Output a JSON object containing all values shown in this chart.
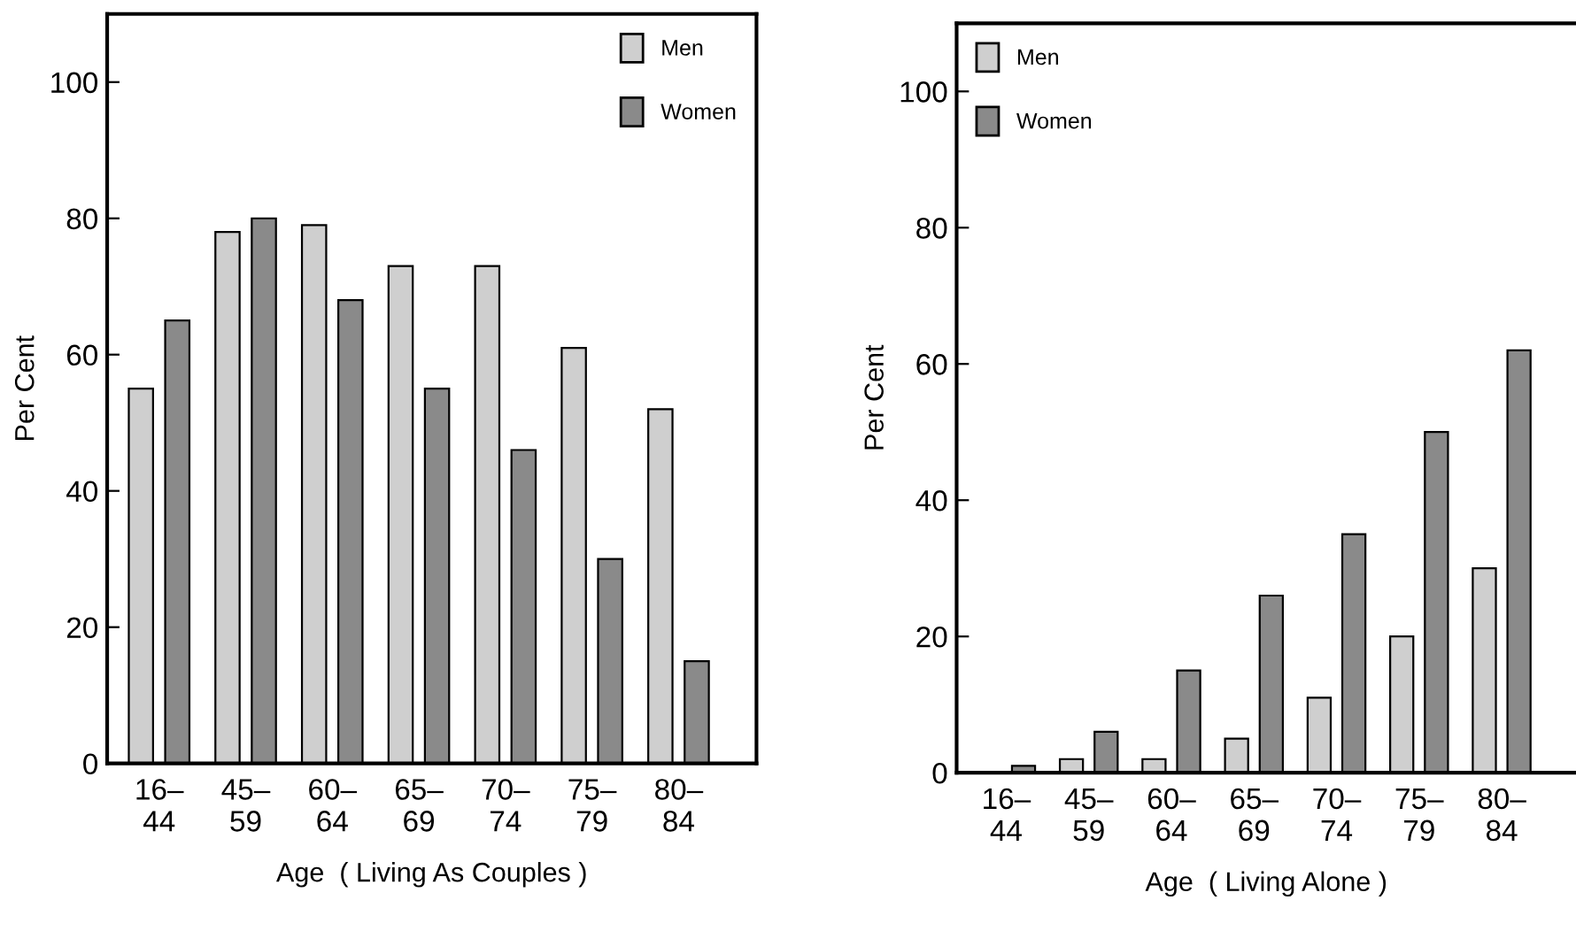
{
  "chart_data": [
    {
      "type": "bar",
      "xlabel": "Age  ( Living As Couples )",
      "ylabel": "Per Cent",
      "categories": [
        "16–\n44",
        "45–\n59",
        "60–\n64",
        "65–\n69",
        "70–\n74",
        "75–\n79",
        "80–\n84"
      ],
      "series": [
        {
          "name": "Men",
          "color": "#cfcfcf",
          "values": [
            55,
            78,
            79,
            73,
            73,
            61,
            52
          ]
        },
        {
          "name": "Women",
          "color": "#8a8a8a",
          "values": [
            65,
            80,
            68,
            55,
            46,
            30,
            15
          ]
        }
      ],
      "ylim": [
        0,
        110
      ],
      "yticks": [
        0,
        20,
        40,
        60,
        80,
        100
      ],
      "grid": false,
      "legend": "top right"
    },
    {
      "type": "bar",
      "xlabel": "Age  ( Living Alone )",
      "ylabel": "Per Cent",
      "categories": [
        "16–\n44",
        "45–\n59",
        "60–\n64",
        "65–\n69",
        "70–\n74",
        "75–\n79",
        "80–\n84"
      ],
      "series": [
        {
          "name": "Men",
          "color": "#cfcfcf",
          "values": [
            null,
            2,
            2,
            5,
            11,
            20,
            30
          ]
        },
        {
          "name": "Women",
          "color": "#8a8a8a",
          "values": [
            1,
            6,
            15,
            26,
            35,
            50,
            62
          ]
        }
      ],
      "ylim": [
        0,
        110
      ],
      "yticks": [
        0,
        20,
        40,
        60,
        80,
        100
      ],
      "grid": false,
      "legend": "top left"
    }
  ]
}
